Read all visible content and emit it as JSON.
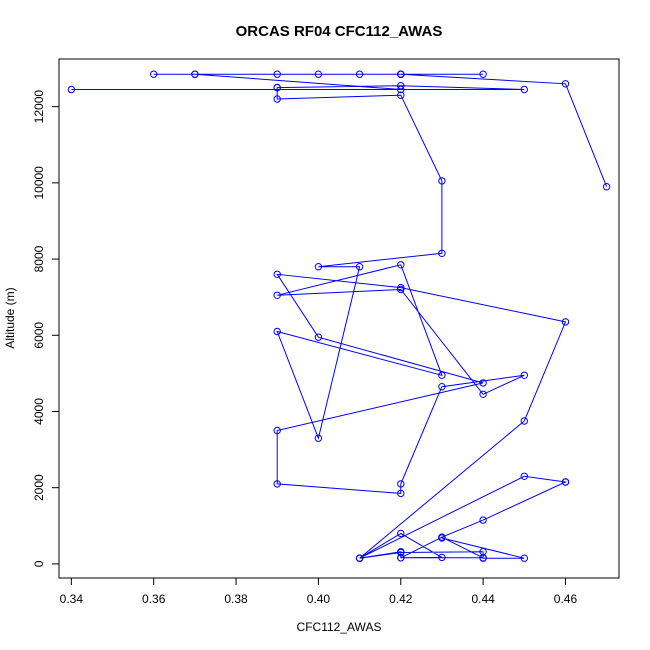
{
  "chart_data": {
    "type": "line",
    "title": "ORCAS RF04 CFC112_AWAS",
    "xlabel": "CFC112_AWAS",
    "ylabel": "Altitude (m)",
    "xlim": [
      0.337,
      0.473
    ],
    "ylim": [
      -370,
      13250
    ],
    "x_ticks": [
      0.34,
      0.36,
      0.38,
      0.4,
      0.42,
      0.44,
      0.46
    ],
    "x_tick_labels": [
      "0.34",
      "0.36",
      "0.38",
      "0.40",
      "0.42",
      "0.44",
      "0.46"
    ],
    "y_ticks": [
      0,
      2000,
      4000,
      6000,
      8000,
      10000,
      12000
    ],
    "y_tick_labels": [
      "0",
      "2000",
      "4000",
      "6000",
      "8000",
      "10000",
      "12000"
    ],
    "grid": false,
    "series_color": "#0000ff",
    "marker": "open-circle",
    "series": [
      {
        "x": [
          0.41,
          0.42,
          0.42,
          0.44,
          0.43,
          0.43,
          0.45,
          0.44,
          0.44,
          0.42,
          0.41,
          0.45,
          0.46,
          0.46,
          0.44,
          0.43,
          0.42,
          0.43,
          0.42,
          0.41,
          0.45,
          0.46,
          0.42,
          0.39,
          0.4,
          0.44,
          0.39,
          0.39,
          0.42,
          0.42,
          0.43,
          0.45,
          0.44,
          0.42,
          0.39,
          0.42,
          0.43,
          0.39,
          0.4,
          0.41,
          0.4,
          0.43,
          0.43,
          0.42,
          0.39,
          0.39,
          0.39,
          0.42,
          0.45,
          0.34,
          0.42,
          0.37,
          0.36,
          0.39,
          0.42,
          0.42,
          0.41,
          0.4,
          0.37,
          0.42,
          0.44,
          0.42,
          0.46,
          0.47
        ],
        "y": [
          150,
          320,
          160,
          160,
          700,
          680,
          150,
          150,
          320,
          300,
          150,
          2300,
          2150,
          2150,
          1150,
          700,
          160,
          170,
          800,
          150,
          3750,
          6350,
          7250,
          7600,
          5950,
          4750,
          3500,
          2100,
          1850,
          2100,
          4650,
          4950,
          4450,
          7200,
          7050,
          7850,
          4950,
          6100,
          3300,
          7800,
          7800,
          8150,
          10050,
          12300,
          12200,
          12500,
          12500,
          12550,
          12450,
          12450,
          12450,
          12850,
          12850,
          12850,
          12850,
          12850,
          12850,
          12850,
          12850,
          12850,
          12850,
          12850,
          12600,
          9900
        ]
      }
    ]
  }
}
